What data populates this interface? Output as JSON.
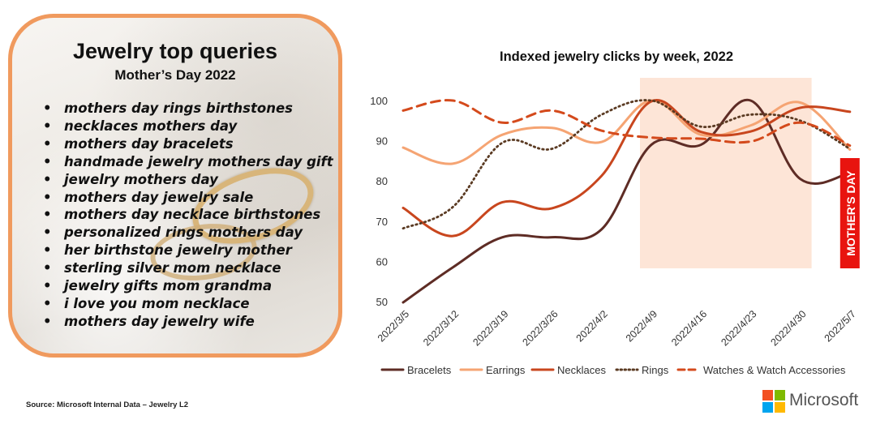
{
  "queries_card": {
    "title": "Jewelry top queries",
    "subtitle": "Mother’s Day 2022",
    "items": [
      "mothers day rings birthstones",
      "necklaces mothers day",
      "mothers day bracelets",
      "handmade jewelry mothers day gift",
      "jewelry mothers day",
      "mothers day jewelry sale",
      "mothers day necklace birthstones",
      "personalized rings mothers day",
      "her birthstone jewelry mother",
      "sterling silver mom necklace",
      "jewelry gifts mom grandma",
      "i love you mom necklace",
      "mothers day jewelry wife"
    ]
  },
  "chart_data": {
    "type": "line",
    "title": "Indexed jewelry clicks by week, 2022",
    "xlabel": "",
    "ylabel": "",
    "x": [
      "2022/3/5",
      "2022/3/12",
      "2022/3/19",
      "2022/3/26",
      "2022/4/2",
      "2022/4/9",
      "2022/4/16",
      "2022/4/23",
      "2022/4/30",
      "2022/5/7"
    ],
    "ylim": [
      50,
      100
    ],
    "yticks": [
      "50",
      "60",
      "70",
      "80",
      "90",
      "100"
    ],
    "grid": false,
    "legend_position": "bottom",
    "highlight": {
      "from": "2022/4/9",
      "to": "2022/4/30",
      "color": "#fde5d7"
    },
    "event_marker": {
      "at": "2022/5/7",
      "label": "MOTHER'S DAY",
      "color": "#e8140f"
    },
    "series": [
      {
        "name": "Bracelets",
        "color": "#5e2c25",
        "dash": "solid",
        "values": [
          49.8,
          58.5,
          66,
          66,
          68,
          89,
          89,
          100,
          80.5,
          82
        ]
      },
      {
        "name": "Earrings",
        "color": "#f5a473",
        "dash": "solid",
        "values": [
          88.3,
          84.3,
          91.5,
          93.2,
          89.7,
          100,
          91.5,
          93.8,
          99.5,
          87.8
        ]
      },
      {
        "name": "Necklaces",
        "color": "#c8461e",
        "dash": "solid",
        "values": [
          73.3,
          66.3,
          74.7,
          73.2,
          81.3,
          99.8,
          92.2,
          92.3,
          98.2,
          97.2
        ]
      },
      {
        "name": "Rings",
        "color": "#5a3a22",
        "dash": "dotted",
        "values": [
          68.2,
          73.5,
          89.5,
          88,
          96.5,
          100,
          93.5,
          96.5,
          95,
          88
        ]
      },
      {
        "name": "Watches & Watch Accessories",
        "color": "#d44a1c",
        "dash": "dashed",
        "values": [
          97.5,
          100,
          94.5,
          97.5,
          92.5,
          90.8,
          90.5,
          89.8,
          94.5,
          88.8
        ]
      }
    ]
  },
  "footer": {
    "source": "Source: Microsoft Internal Data – Jewelry L2",
    "brand": "Microsoft",
    "logo_colors": [
      "#f25022",
      "#7fba00",
      "#00a4ef",
      "#ffb900"
    ]
  }
}
